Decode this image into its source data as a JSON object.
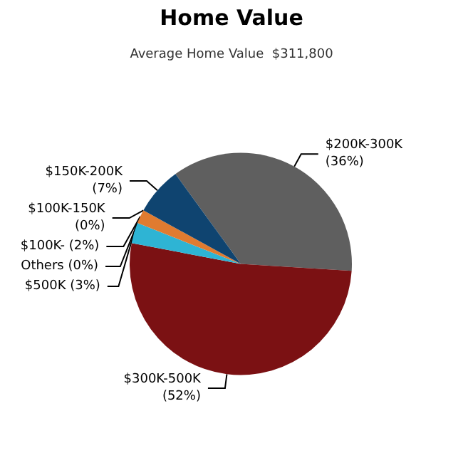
{
  "chart_data": {
    "type": "pie",
    "title": "Home Value",
    "subtitle": "Average Home Value  $311,800",
    "categories": [
      "$200K-300K",
      "$300K-500K",
      "$500K",
      "Others",
      "$100K-",
      "$100K-150K",
      "$150K-200K"
    ],
    "values": [
      36,
      52,
      3,
      0,
      2,
      0,
      7
    ],
    "value_labels": [
      "(36%)",
      "(52%)",
      "(3%)",
      "(0%)",
      "(2%)",
      "(0%)",
      "(7%)"
    ],
    "colors": [
      "#5f5f5f",
      "#7b1113",
      "#2eb4d4",
      "#9a9a9a",
      "#e07b30",
      "#b04a20",
      "#0f4470"
    ]
  }
}
